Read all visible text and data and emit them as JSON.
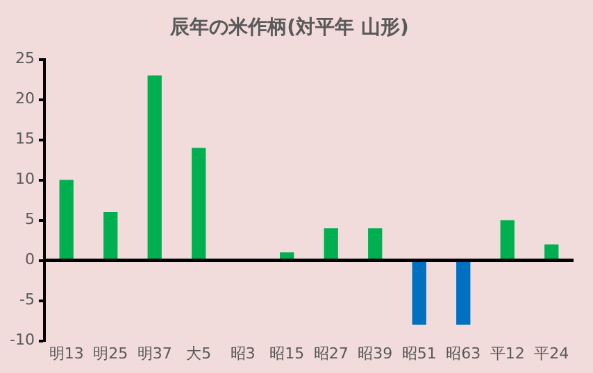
{
  "chart_data": {
    "type": "bar",
    "title": "辰年の米作柄(対平年 山形)",
    "categories": [
      "明13",
      "明25",
      "明37",
      "大5",
      "昭3",
      "昭15",
      "昭27",
      "昭39",
      "昭51",
      "昭63",
      "平12",
      "平24"
    ],
    "values": [
      10,
      6,
      23,
      14,
      0,
      1,
      4,
      4,
      -8,
      -8,
      5,
      2
    ],
    "colors": [
      "#00b050",
      "#00b050",
      "#00b050",
      "#00b050",
      "#00b050",
      "#00b050",
      "#00b050",
      "#00b050",
      "#0070c0",
      "#0070c0",
      "#00b050",
      "#00b050"
    ],
    "ylim": [
      -10,
      25
    ],
    "yticks": [
      -10,
      -5,
      0,
      5,
      10,
      15,
      20,
      25
    ],
    "ref_lines": [
      {
        "axis": "y",
        "value": 0,
        "color": "#000000"
      }
    ],
    "grid": false,
    "legend": false
  }
}
